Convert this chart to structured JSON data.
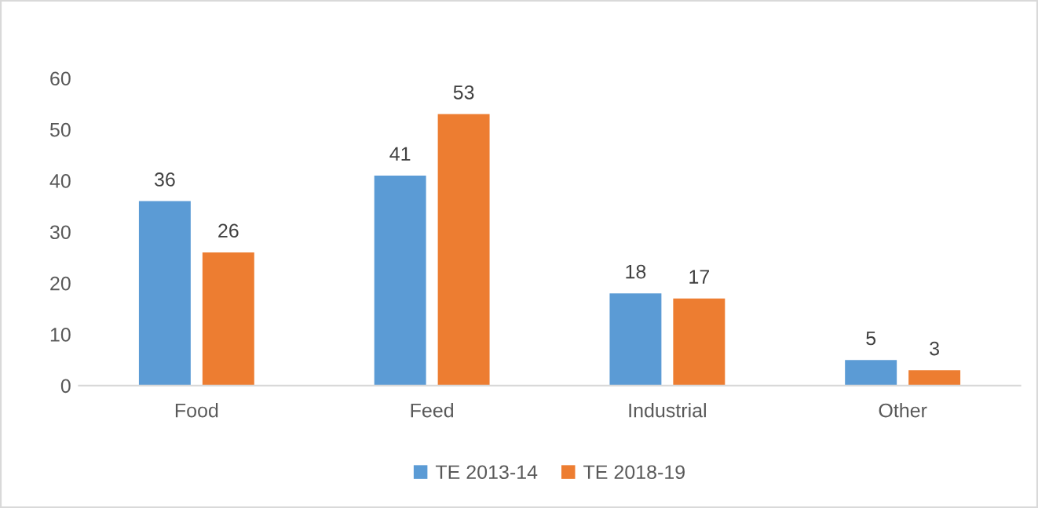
{
  "chart_data": {
    "type": "bar",
    "categories": [
      "Food",
      "Feed",
      "Industrial",
      "Other"
    ],
    "series": [
      {
        "name": "TE 2013-14",
        "color": "#5b9bd5",
        "values": [
          36,
          41,
          18,
          5
        ]
      },
      {
        "name": "TE 2018-19",
        "color": "#ed7d31",
        "values": [
          26,
          53,
          17,
          3
        ]
      }
    ],
    "ylim": [
      0,
      60
    ],
    "yticks": [
      0,
      10,
      20,
      30,
      40,
      50,
      60
    ],
    "grid": false,
    "legend": "bottom",
    "data_labels": true
  }
}
